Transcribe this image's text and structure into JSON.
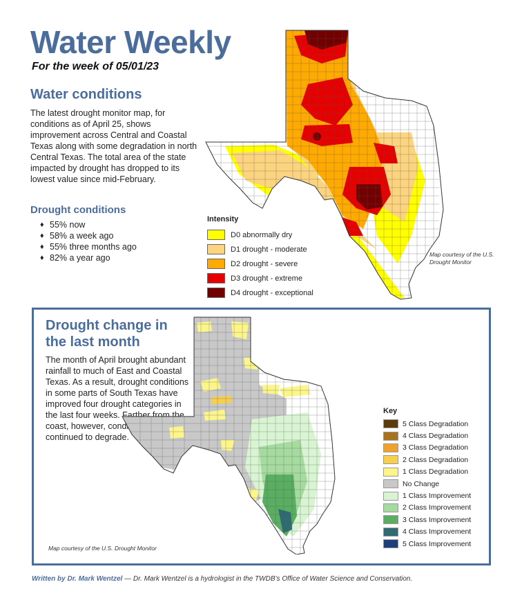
{
  "header": {
    "title": "Water Weekly",
    "subtitle": "For the week of 05/01/23"
  },
  "water_conditions": {
    "heading": "Water conditions",
    "body": "The latest drought monitor map, for conditions as of April 25, shows improvement across Central and Coastal Texas along with some degradation in north Central Texas. The total area of the state impacted by drought has dropped to its lowest value since mid-February."
  },
  "drought_conditions": {
    "heading": "Drought conditions",
    "items": [
      "55% now",
      "58% a week ago",
      "55% three months ago",
      "82% a year ago"
    ]
  },
  "map1": {
    "legend_title": "Intensity",
    "legend": [
      {
        "label": "D0  abnormally dry",
        "color": "#ffff00"
      },
      {
        "label": "D1  drought - moderate",
        "color": "#fcd37f"
      },
      {
        "label": "D2  drought - severe",
        "color": "#ffaa00"
      },
      {
        "label": "D3  drought - extreme",
        "color": "#e60000"
      },
      {
        "label": "D4  drought - exceptional",
        "color": "#730000"
      }
    ],
    "credit": "Map courtesy of the U.S. Drought Monitor"
  },
  "change": {
    "heading": "Drought change in the last month",
    "body": "The month of April brought abundant rainfall to much of East and Coastal Texas. As a result, drought conditions in some parts of South Texas have improved four drought categories in the last four weeks. Farther from the coast, however, conditions have continued to degrade.",
    "credit": "Map courtesy of the U.S. Drought Monitor",
    "legend_title": "Key",
    "legend": [
      {
        "label": "5 Class Degradation",
        "color": "#5b3a0c"
      },
      {
        "label": "4 Class Degradation",
        "color": "#a8721f"
      },
      {
        "label": "3 Class Degradation",
        "color": "#f0a32a"
      },
      {
        "label": "2 Class Degradation",
        "color": "#f7cf4a"
      },
      {
        "label": "1 Class Degradation",
        "color": "#fbf58a"
      },
      {
        "label": "No Change",
        "color": "#c8c8c8"
      },
      {
        "label": "1 Class Improvement",
        "color": "#d9f4d2"
      },
      {
        "label": "2 Class Improvement",
        "color": "#a6dba0"
      },
      {
        "label": "3 Class Improvement",
        "color": "#5aae61"
      },
      {
        "label": "4 Class Improvement",
        "color": "#2e6b73"
      },
      {
        "label": "5 Class Improvement",
        "color": "#1f3f7a"
      }
    ]
  },
  "footer": {
    "author": "Written by Dr. Mark Wentzel",
    "text": " — Dr. Mark Wentzel is a hydrologist in the TWDB’s Office of Water Science and Conservation."
  }
}
